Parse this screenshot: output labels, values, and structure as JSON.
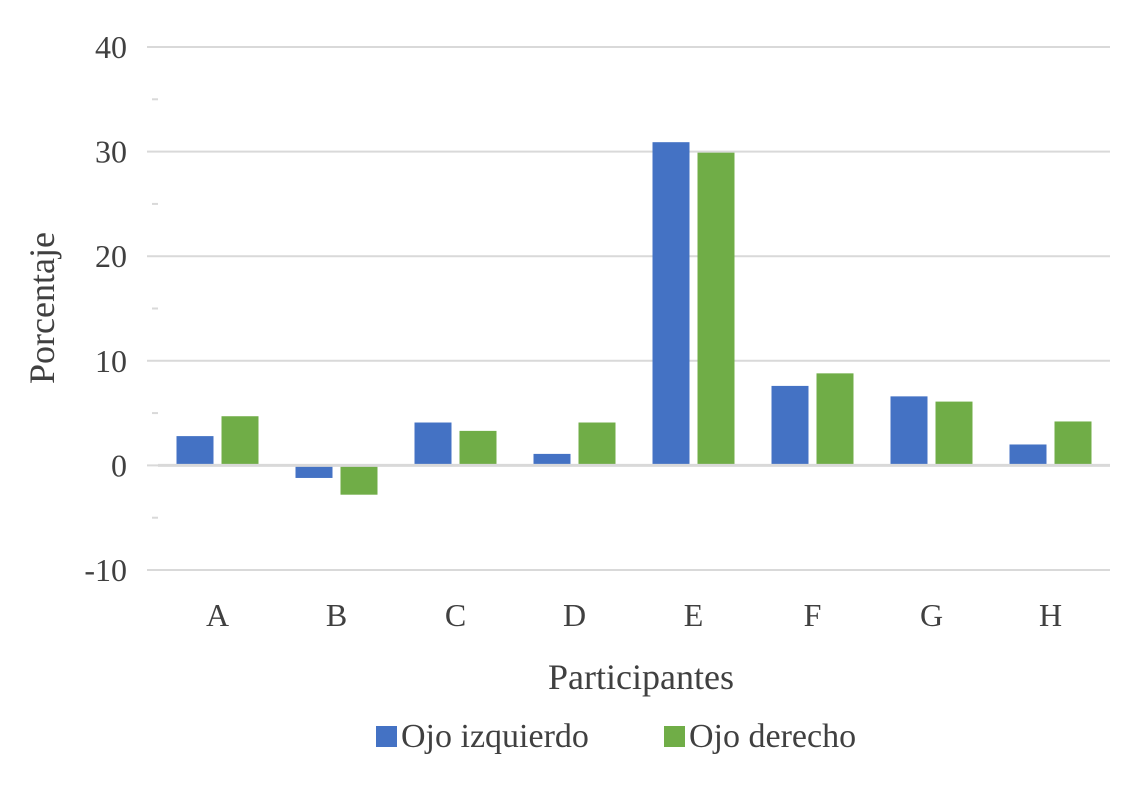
{
  "chart_data": {
    "type": "bar",
    "categories": [
      "A",
      "B",
      "C",
      "D",
      "E",
      "F",
      "G",
      "H"
    ],
    "series": [
      {
        "name": "Ojo izquierdo",
        "color": "#4472c4",
        "values": [
          2.8,
          -1.2,
          4.1,
          1.1,
          30.9,
          7.6,
          6.6,
          2.0
        ]
      },
      {
        "name": "Ojo derecho",
        "color": "#70ad47",
        "values": [
          4.7,
          -2.8,
          3.3,
          4.1,
          29.9,
          8.8,
          6.1,
          4.2
        ]
      }
    ],
    "xlabel": "Participantes",
    "ylabel": "Porcentaje",
    "ylim": [
      -10,
      40
    ],
    "yticks": [
      -10,
      0,
      10,
      20,
      30,
      40
    ],
    "grid": true,
    "legend_position": "bottom"
  }
}
